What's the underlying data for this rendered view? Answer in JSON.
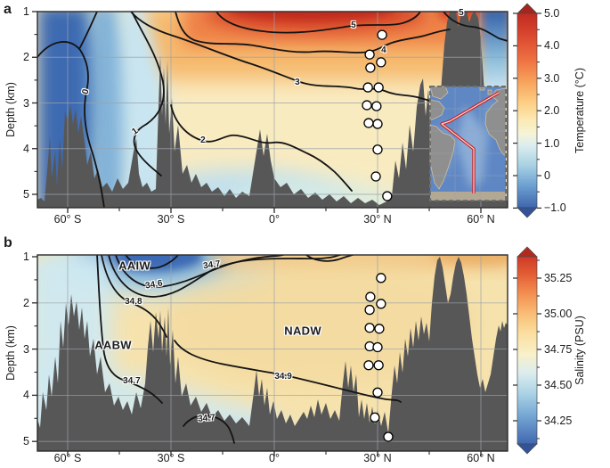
{
  "figure_description": "Two-panel Atlantic Ocean depth sections with inset survey map",
  "colors": {
    "bathymetry": "#575757",
    "contour_line": "#141414",
    "station_fill": "#ffffff",
    "warm_max": "#c02a1e",
    "cold_min": "#3f66ae",
    "inset_track": "#c41e25"
  },
  "chart_data": [
    {
      "panel_letter": "a",
      "type": "heatmap",
      "variable": "Temperature section",
      "ylabel": "Depth (km)",
      "xlim_deg_lat": [
        -69,
        68
      ],
      "ylim_km": [
        1,
        5.3
      ],
      "x_tick_labels": [
        "60° S",
        "30° S",
        "0°",
        "30° N",
        "60° N"
      ],
      "x_tick_values": [
        -60,
        -30,
        0,
        30,
        60
      ],
      "x_minor_tick_values": [
        -45,
        -15,
        15,
        45
      ],
      "y_tick_labels": [
        "1",
        "2",
        "3",
        "4",
        "5"
      ],
      "y_tick_values": [
        1,
        2,
        3,
        4,
        5
      ],
      "grid": true,
      "colorbar": {
        "label": "Temperature (°C)",
        "tick_labels": [
          "5.0",
          "4.0",
          "3.0",
          "2.0",
          "1.0",
          "0",
          "−1.0"
        ],
        "tick_values": [
          5,
          4,
          3,
          2,
          1,
          0,
          -1
        ],
        "range": [
          -1,
          5
        ]
      },
      "contour_labels": [
        {
          "text": "0",
          "lat": -54.6,
          "depth_km": 2.76,
          "rot": -75
        },
        {
          "text": "1",
          "lat": -40.3,
          "depth_km": 3.63,
          "rot": -35
        },
        {
          "text": "2",
          "lat": -20.7,
          "depth_km": 3.83,
          "rot": 0
        },
        {
          "text": "3",
          "lat": 6.7,
          "depth_km": 2.56,
          "rot": 0
        },
        {
          "text": "5",
          "lat": 23.0,
          "depth_km": 1.31,
          "rot": 0
        },
        {
          "text": "4",
          "lat": 31.8,
          "depth_km": 1.86,
          "rot": 0
        },
        {
          "text": "5",
          "lat": 54.3,
          "depth_km": 1.04,
          "rot": 0
        }
      ],
      "stations": [
        {
          "lat": 31.3,
          "depth_km": 1.51
        },
        {
          "lat": 27.7,
          "depth_km": 1.94
        },
        {
          "lat": 31.0,
          "depth_km": 2.11
        },
        {
          "lat": 27.9,
          "depth_km": 2.23
        },
        {
          "lat": 27.2,
          "depth_km": 2.66
        },
        {
          "lat": 30.3,
          "depth_km": 2.66
        },
        {
          "lat": 26.9,
          "depth_km": 3.05
        },
        {
          "lat": 29.7,
          "depth_km": 3.07
        },
        {
          "lat": 27.4,
          "depth_km": 3.44
        },
        {
          "lat": 30.0,
          "depth_km": 3.46
        },
        {
          "lat": 30.0,
          "depth_km": 4.02
        },
        {
          "lat": 29.5,
          "depth_km": 4.61
        },
        {
          "lat": 32.8,
          "depth_km": 5.04
        }
      ],
      "inset_map": {
        "description": "Atlantic Ocean bathymetry map with red section track",
        "track_color": "#c41e25"
      }
    },
    {
      "panel_letter": "b",
      "type": "heatmap",
      "variable": "Salinity section",
      "ylabel": "Depth (km)",
      "xlim_deg_lat": [
        -69,
        68
      ],
      "ylim_km": [
        1,
        5.3
      ],
      "x_tick_labels": [
        "60° S",
        "30° S",
        "0°",
        "30° N",
        "60° N"
      ],
      "x_tick_values": [
        -60,
        -30,
        0,
        30,
        60
      ],
      "x_minor_tick_values": [
        -45,
        -15,
        15,
        45
      ],
      "y_tick_labels": [
        "1",
        "2",
        "3",
        "4",
        "5"
      ],
      "y_tick_values": [
        1,
        2,
        3,
        4,
        5
      ],
      "grid": true,
      "colorbar": {
        "label": "Salinity (PSU)",
        "tick_labels": [
          "35.25",
          "35.00",
          "34.75",
          "34.50",
          "34.25"
        ],
        "tick_values": [
          35.25,
          35.0,
          34.75,
          34.5,
          34.25
        ],
        "range": [
          34.1,
          35.4
        ]
      },
      "contour_labels": [
        {
          "text": "34.7",
          "lat": -18.1,
          "depth_km": 1.19,
          "rot": -8
        },
        {
          "text": "34.6",
          "lat": -34.9,
          "depth_km": 1.62,
          "rot": -10
        },
        {
          "text": "34.8",
          "lat": -40.9,
          "depth_km": 1.98,
          "rot": 0
        },
        {
          "text": "34.7",
          "lat": -41.4,
          "depth_km": 3.71,
          "rot": 0
        },
        {
          "text": "34.9",
          "lat": 2.6,
          "depth_km": 3.6,
          "rot": 0
        },
        {
          "text": "34.7",
          "lat": -19.7,
          "depth_km": 4.52,
          "rot": -5
        }
      ],
      "water_mass_labels": [
        {
          "text": "AAIW",
          "lat": -40.6,
          "depth_km": 1.19
        },
        {
          "text": "AABW",
          "lat": -46.8,
          "depth_km": 2.92
        },
        {
          "text": "NADW",
          "lat": 8.3,
          "depth_km": 2.6
        }
      ],
      "stations": [
        {
          "lat": 31.0,
          "depth_km": 1.46
        },
        {
          "lat": 27.9,
          "depth_km": 1.87
        },
        {
          "lat": 31.0,
          "depth_km": 2.02
        },
        {
          "lat": 27.7,
          "depth_km": 2.15
        },
        {
          "lat": 27.7,
          "depth_km": 2.54
        },
        {
          "lat": 30.5,
          "depth_km": 2.56
        },
        {
          "lat": 27.7,
          "depth_km": 2.94
        },
        {
          "lat": 30.0,
          "depth_km": 2.96
        },
        {
          "lat": 27.4,
          "depth_km": 3.35
        },
        {
          "lat": 30.3,
          "depth_km": 3.35
        },
        {
          "lat": 30.0,
          "depth_km": 3.94
        },
        {
          "lat": 29.2,
          "depth_km": 4.48
        },
        {
          "lat": 33.1,
          "depth_km": 4.9
        }
      ]
    }
  ]
}
